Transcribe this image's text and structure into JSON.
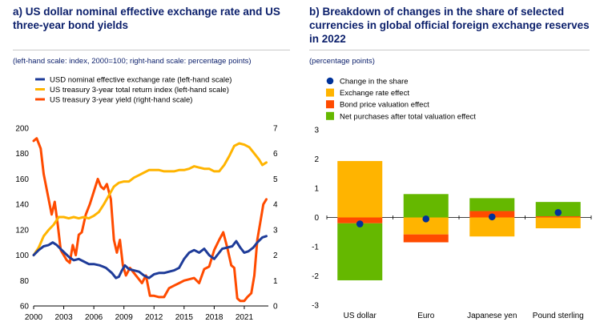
{
  "panel_a": {
    "title": "a) US dollar nominal effective exchange rate and US three-year bond yields",
    "subtitle": "(left-hand scale: index, 2000=100; right-hand scale: percentage points)"
  },
  "panel_b": {
    "title": "b) Breakdown of changes in the share of selected currencies in global official foreign exchange reserves in 2022",
    "subtitle": "(percentage points)"
  },
  "colors": {
    "navy": "#1f3c99",
    "yellow": "#ffb400",
    "orange": "#ff4b00",
    "green": "#65b800",
    "dot": "#003299"
  },
  "chart_data": [
    {
      "type": "line",
      "legend_position": "top-left",
      "grid": false,
      "x_ticks": [
        "2000",
        "2003",
        "2006",
        "2009",
        "2012",
        "2015",
        "2018",
        "2021"
      ],
      "x_range": [
        2000,
        2023.4
      ],
      "left_axis": {
        "ylim": [
          60,
          200
        ],
        "ticks": [
          60,
          80,
          100,
          120,
          140,
          160,
          180,
          200
        ]
      },
      "right_axis": {
        "ylim": [
          0,
          7
        ],
        "ticks": [
          0,
          1,
          2,
          3,
          4,
          5,
          6,
          7
        ]
      },
      "series": [
        {
          "name": "USD nominal effective exchange rate (left-hand scale)",
          "axis": "left",
          "color": "#1f3c99",
          "points": [
            [
              2000,
              100
            ],
            [
              2000.5,
              104
            ],
            [
              2001,
              107
            ],
            [
              2001.5,
              108
            ],
            [
              2001.9,
              110
            ],
            [
              2002.3,
              108
            ],
            [
              2002.8,
              104
            ],
            [
              2003.2,
              101
            ],
            [
              2003.6,
              98
            ],
            [
              2004,
              96
            ],
            [
              2004.5,
              97
            ],
            [
              2005,
              95
            ],
            [
              2005.5,
              93
            ],
            [
              2006,
              93
            ],
            [
              2006.6,
              92
            ],
            [
              2007.2,
              90
            ],
            [
              2007.8,
              86
            ],
            [
              2008.2,
              82
            ],
            [
              2008.5,
              83
            ],
            [
              2008.8,
              88
            ],
            [
              2009.1,
              92
            ],
            [
              2009.5,
              89
            ],
            [
              2010,
              88
            ],
            [
              2010.5,
              87
            ],
            [
              2011,
              84
            ],
            [
              2011.5,
              82
            ],
            [
              2012,
              85
            ],
            [
              2012.5,
              86
            ],
            [
              2013,
              86
            ],
            [
              2013.5,
              87
            ],
            [
              2014,
              88
            ],
            [
              2014.5,
              90
            ],
            [
              2015,
              97
            ],
            [
              2015.5,
              102
            ],
            [
              2016,
              104
            ],
            [
              2016.5,
              102
            ],
            [
              2017,
              105
            ],
            [
              2017.5,
              100
            ],
            [
              2018,
              97
            ],
            [
              2018.4,
              101
            ],
            [
              2018.8,
              105
            ],
            [
              2019.3,
              106
            ],
            [
              2019.8,
              107
            ],
            [
              2020.2,
              111
            ],
            [
              2020.6,
              106
            ],
            [
              2021,
              102
            ],
            [
              2021.4,
              103
            ],
            [
              2021.9,
              106
            ],
            [
              2022.3,
              110
            ],
            [
              2022.8,
              114
            ],
            [
              2023.2,
              115
            ]
          ]
        },
        {
          "name": "US treasury 3-year total return index (left-hand scale)",
          "axis": "left",
          "color": "#ffb400",
          "points": [
            [
              2000,
              100
            ],
            [
              2000.5,
              106
            ],
            [
              2001,
              115
            ],
            [
              2001.5,
              120
            ],
            [
              2002,
              124
            ],
            [
              2002.5,
              130
            ],
            [
              2003,
              130
            ],
            [
              2003.5,
              129
            ],
            [
              2004,
              130
            ],
            [
              2004.5,
              129
            ],
            [
              2005,
              130
            ],
            [
              2005.5,
              129
            ],
            [
              2006,
              131
            ],
            [
              2006.5,
              134
            ],
            [
              2007,
              140
            ],
            [
              2007.5,
              147
            ],
            [
              2008,
              154
            ],
            [
              2008.5,
              157
            ],
            [
              2009,
              158
            ],
            [
              2009.5,
              158
            ],
            [
              2010,
              161
            ],
            [
              2010.5,
              163
            ],
            [
              2011,
              165
            ],
            [
              2011.5,
              167
            ],
            [
              2012,
              167
            ],
            [
              2012.5,
              167
            ],
            [
              2013,
              166
            ],
            [
              2013.5,
              166
            ],
            [
              2014,
              166
            ],
            [
              2014.5,
              167
            ],
            [
              2015,
              167
            ],
            [
              2015.5,
              168
            ],
            [
              2016,
              170
            ],
            [
              2016.5,
              169
            ],
            [
              2017,
              168
            ],
            [
              2017.5,
              168
            ],
            [
              2018,
              166
            ],
            [
              2018.5,
              166
            ],
            [
              2019,
              171
            ],
            [
              2019.5,
              178
            ],
            [
              2020,
              186
            ],
            [
              2020.5,
              188
            ],
            [
              2021,
              187
            ],
            [
              2021.5,
              185
            ],
            [
              2022,
              180
            ],
            [
              2022.5,
              175
            ],
            [
              2022.8,
              171
            ],
            [
              2023.2,
              173
            ]
          ]
        },
        {
          "name": "US treasury 3-year yield (right-hand scale)",
          "axis": "right",
          "color": "#ff4b00",
          "points": [
            [
              2000,
              6.5
            ],
            [
              2000.3,
              6.6
            ],
            [
              2000.7,
              6.2
            ],
            [
              2001,
              5.2
            ],
            [
              2001.4,
              4.4
            ],
            [
              2001.8,
              3.6
            ],
            [
              2002.1,
              4.1
            ],
            [
              2002.4,
              3.2
            ],
            [
              2002.7,
              2.2
            ],
            [
              2003,
              2.0
            ],
            [
              2003.3,
              1.8
            ],
            [
              2003.6,
              1.7
            ],
            [
              2003.9,
              2.4
            ],
            [
              2004.2,
              2.0
            ],
            [
              2004.5,
              2.8
            ],
            [
              2004.8,
              2.9
            ],
            [
              2005.2,
              3.6
            ],
            [
              2005.6,
              4.0
            ],
            [
              2006,
              4.5
            ],
            [
              2006.4,
              5.0
            ],
            [
              2006.7,
              4.7
            ],
            [
              2007,
              4.6
            ],
            [
              2007.3,
              4.8
            ],
            [
              2007.7,
              4.2
            ],
            [
              2008,
              2.6
            ],
            [
              2008.3,
              2.1
            ],
            [
              2008.6,
              2.6
            ],
            [
              2008.9,
              1.6
            ],
            [
              2009.2,
              1.2
            ],
            [
              2009.6,
              1.5
            ],
            [
              2010,
              1.3
            ],
            [
              2010.4,
              1.1
            ],
            [
              2010.8,
              0.9
            ],
            [
              2011.2,
              1.2
            ],
            [
              2011.6,
              0.4
            ],
            [
              2012,
              0.4
            ],
            [
              2012.5,
              0.35
            ],
            [
              2013,
              0.35
            ],
            [
              2013.5,
              0.7
            ],
            [
              2014,
              0.8
            ],
            [
              2014.5,
              0.9
            ],
            [
              2015,
              1.0
            ],
            [
              2015.5,
              1.05
            ],
            [
              2016,
              1.1
            ],
            [
              2016.5,
              0.9
            ],
            [
              2017,
              1.45
            ],
            [
              2017.5,
              1.55
            ],
            [
              2018,
              2.2
            ],
            [
              2018.5,
              2.6
            ],
            [
              2018.9,
              2.9
            ],
            [
              2019.3,
              2.3
            ],
            [
              2019.7,
              1.6
            ],
            [
              2020,
              1.5
            ],
            [
              2020.3,
              0.3
            ],
            [
              2020.6,
              0.2
            ],
            [
              2021,
              0.2
            ],
            [
              2021.3,
              0.35
            ],
            [
              2021.7,
              0.5
            ],
            [
              2022,
              1.2
            ],
            [
              2022.3,
              2.6
            ],
            [
              2022.6,
              3.3
            ],
            [
              2022.9,
              4.0
            ],
            [
              2023.2,
              4.2
            ]
          ]
        }
      ]
    },
    {
      "type": "bar",
      "stacked": true,
      "legend_position": "top-left",
      "grid": false,
      "categories": [
        "US dollar",
        "Euro",
        "Japanese yen",
        "Pound sterling"
      ],
      "ylim": [
        -3,
        3
      ],
      "y_ticks": [
        -3,
        -2,
        -1,
        0,
        1,
        2,
        3
      ],
      "series": [
        {
          "name": "Change in the share",
          "kind": "dot",
          "color": "#003299",
          "values": [
            -0.22,
            -0.05,
            0.02,
            0.17
          ]
        },
        {
          "name": "Exchange rate effect",
          "kind": "bar",
          "color": "#ffb400",
          "values": [
            1.93,
            -0.58,
            -0.65,
            -0.37
          ]
        },
        {
          "name": "Bond price valuation effect",
          "kind": "bar",
          "color": "#ff4b00",
          "values": [
            -0.2,
            -0.27,
            0.22,
            0.04
          ]
        },
        {
          "name": "Net purchases after total valuation effect",
          "kind": "bar",
          "color": "#65b800",
          "values": [
            -1.95,
            0.8,
            0.44,
            0.49
          ]
        }
      ]
    }
  ]
}
